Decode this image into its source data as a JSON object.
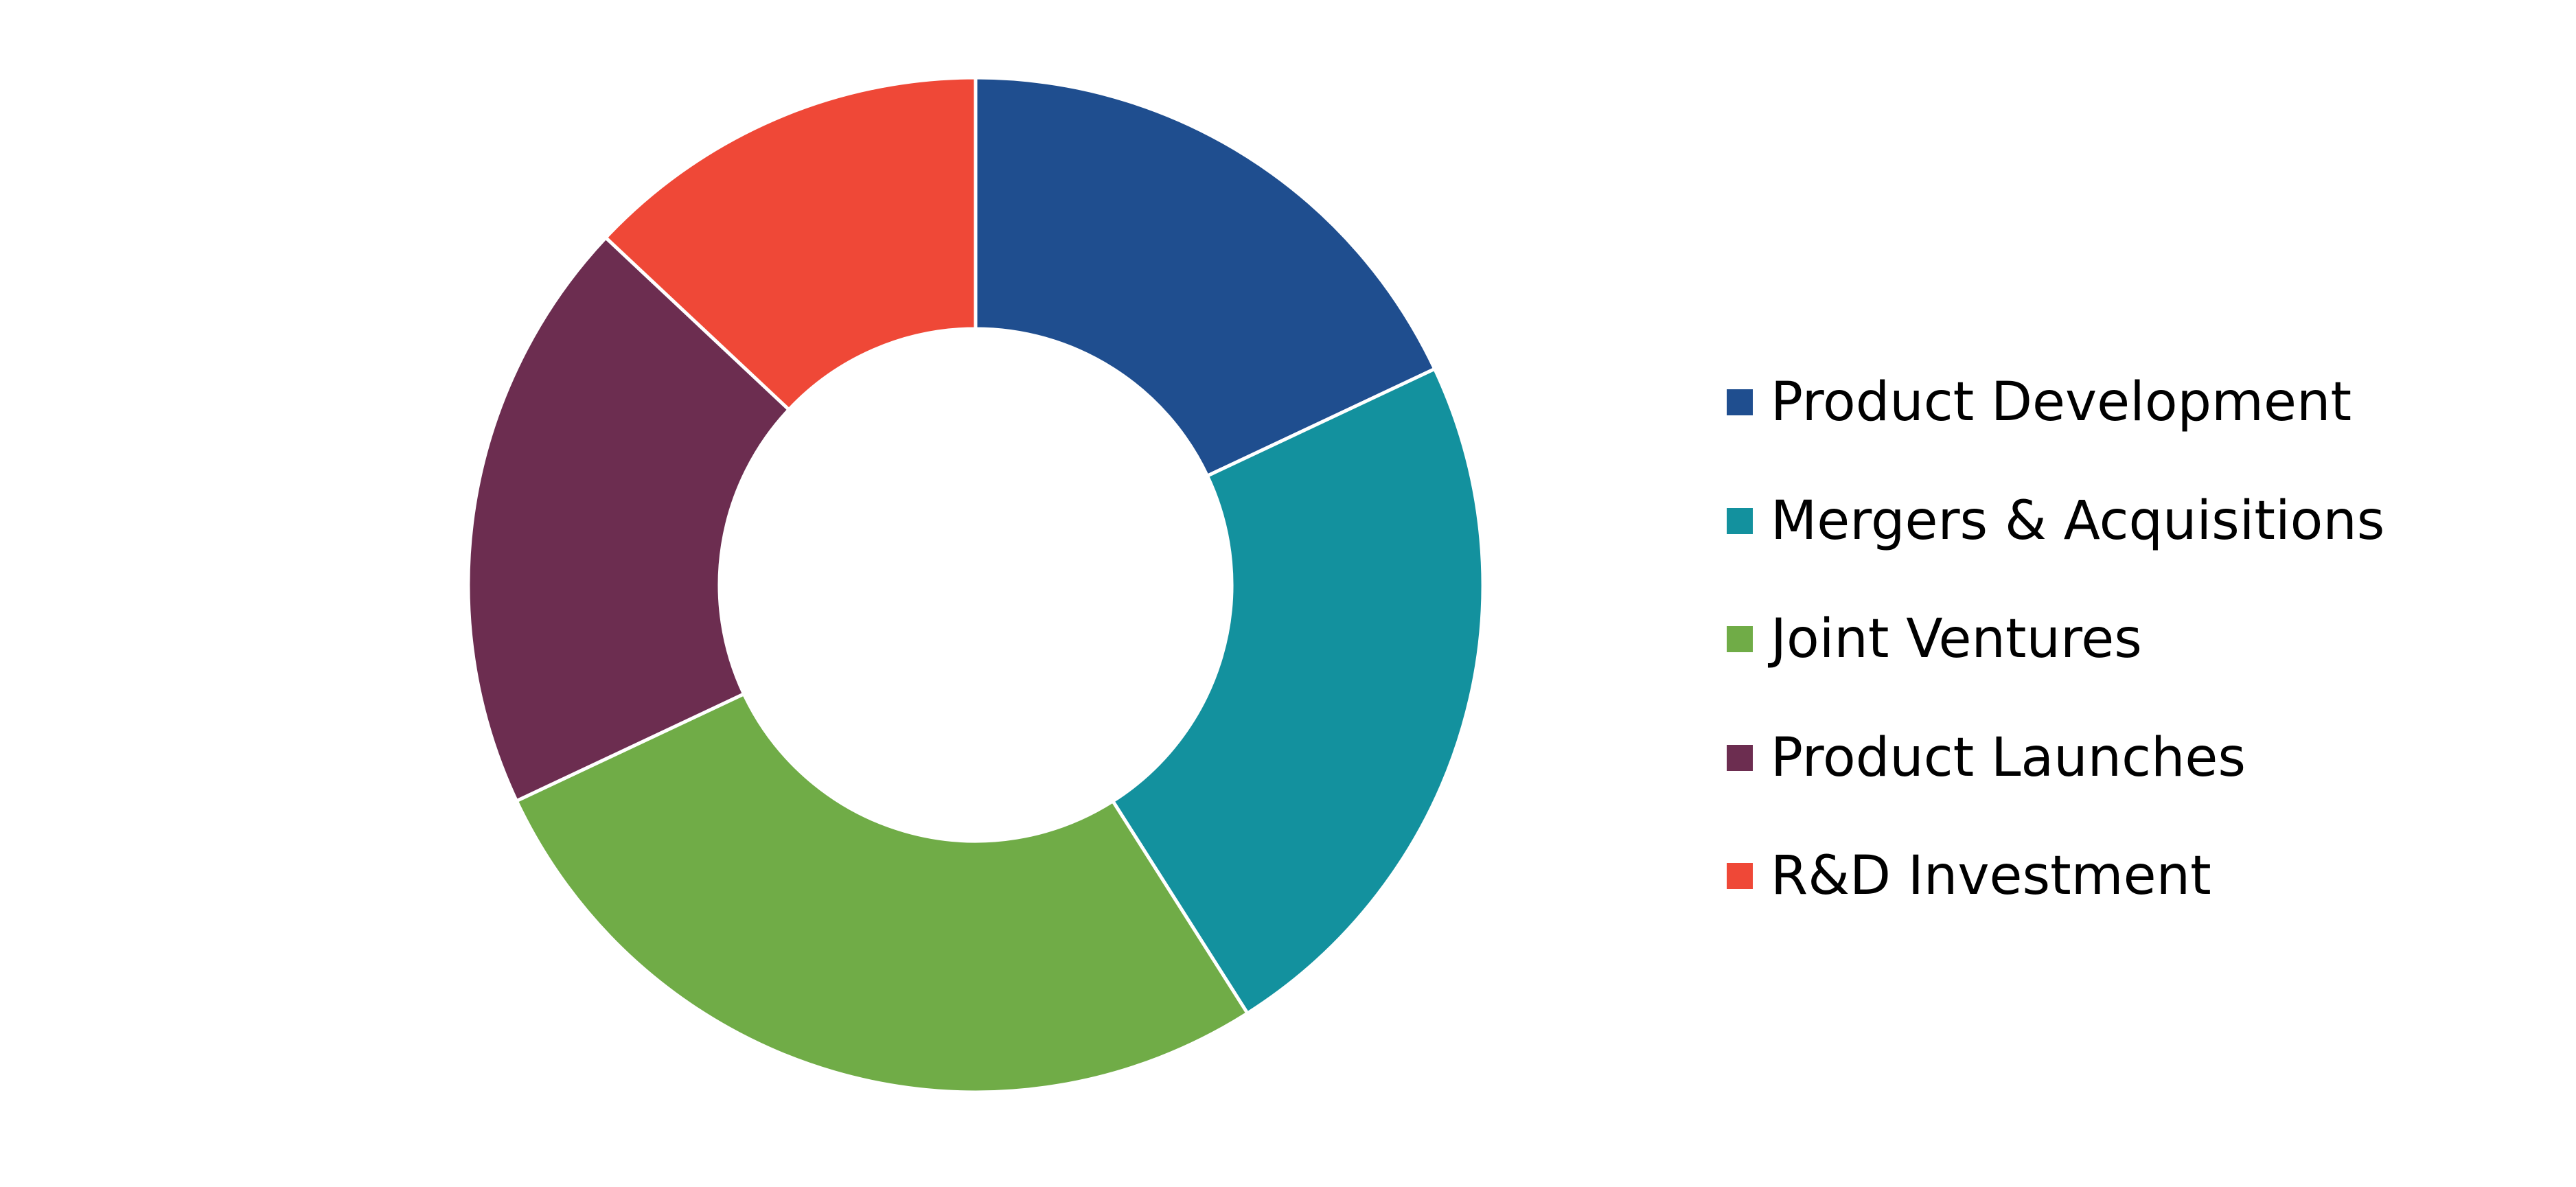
{
  "chart_data": {
    "type": "pie",
    "donut": true,
    "categories": [
      "Product Development",
      "Mergers & Acquisitions",
      "Joint Ventures",
      "Product Launches",
      "R&D Investment"
    ],
    "values": [
      18,
      23,
      27,
      19,
      13
    ],
    "colors": [
      "#1f4e8f",
      "#13919e",
      "#70ac47",
      "#6c2d50",
      "#ef4837"
    ],
    "legend_position": "right",
    "start_angle": "12 o'clock, clockwise"
  }
}
